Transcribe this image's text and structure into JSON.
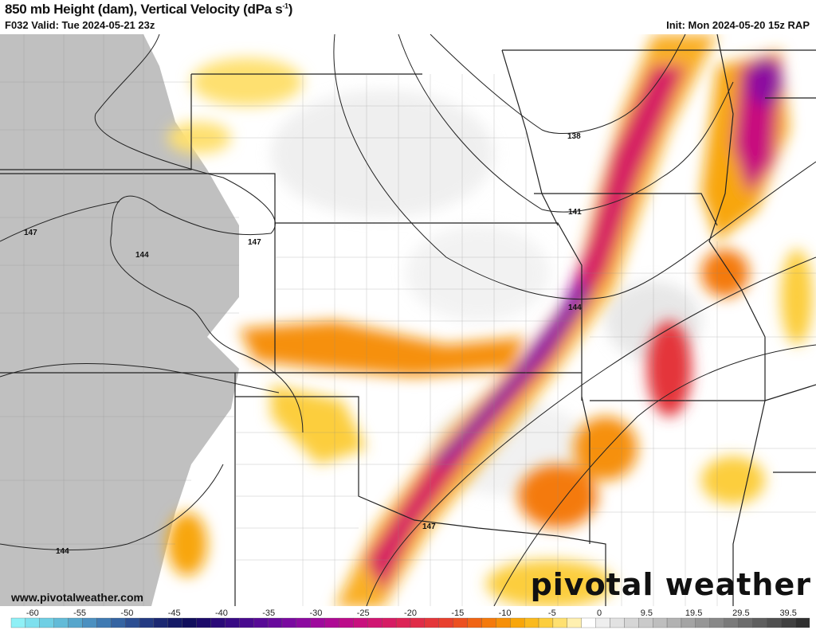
{
  "header": {
    "title": "850 mb Height (dam), Vertical Velocity (dPa s",
    "title_sup": "-1",
    "title_end": ")",
    "valid": "F032 Valid: Tue 2024-05-21 23z",
    "init": "Init: Mon 2024-05-20 15z RAP"
  },
  "map": {
    "contour_labels": [
      "138",
      "141",
      "144",
      "147",
      "147",
      "144",
      "144",
      "147"
    ],
    "terrain_mask_color": "#c0c0c0"
  },
  "footer": {
    "url": "www.pivotalweather.com",
    "brand": "pivotal weather"
  },
  "colorbar": {
    "ticks": [
      "-60",
      "-55",
      "-50",
      "-45",
      "-40",
      "-35",
      "-30",
      "-25",
      "-20",
      "-15",
      "-10",
      "-5",
      "0",
      "9.5",
      "19.5",
      "29.5",
      "39.5"
    ],
    "colors": [
      "#8ff0f6",
      "#7ee0ee",
      "#6fcfe4",
      "#62bbd8",
      "#56a6cc",
      "#4b90c0",
      "#3f7ab2",
      "#3564a2",
      "#2c4e92",
      "#233a82",
      "#1b2872",
      "#141a66",
      "#100e5c",
      "#1c0a6a",
      "#2a0a78",
      "#380a84",
      "#480a8e",
      "#580a96",
      "#680a9c",
      "#7a0aa0",
      "#8c0aa0",
      "#9e0a9c",
      "#ae0a94",
      "#bc0c8a",
      "#c8107e",
      "#d01672",
      "#d61c64",
      "#dc2456",
      "#e02c48",
      "#e4363a",
      "#e8402e",
      "#ec5020",
      "#f06414",
      "#f47a0c",
      "#f69008",
      "#f8a60a",
      "#faba1e",
      "#fcce3e",
      "#fee070",
      "#fff0b0",
      "#ffffff",
      "#eeeeee",
      "#e2e2e2",
      "#d6d6d6",
      "#cacaca",
      "#bebebe",
      "#b2b2b2",
      "#a4a4a4",
      "#969696",
      "#888888",
      "#7a7a7a",
      "#6c6c6c",
      "#5e5e5e",
      "#505050",
      "#404040",
      "#303030"
    ]
  }
}
